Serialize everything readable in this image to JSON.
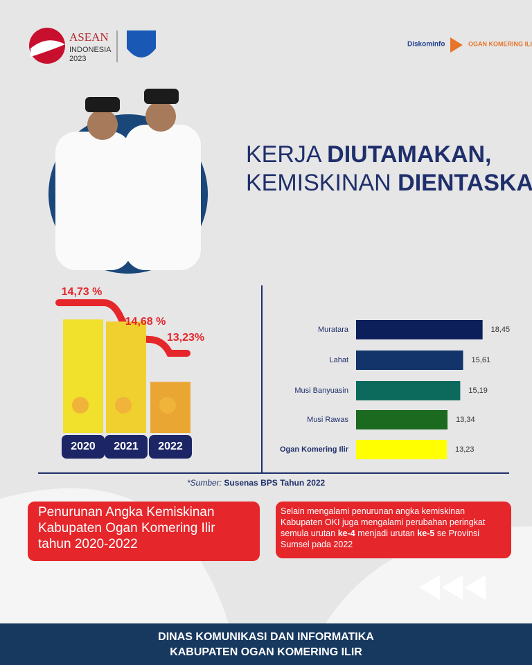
{
  "header": {
    "logo_left": {
      "name": "ASEAN",
      "sub": "INDONESIA",
      "year": "2023"
    },
    "logo_right": {
      "name": "Diskominfo",
      "region": "OGAN KOMERING ILIR"
    }
  },
  "headline": {
    "line1_light": "KERJA",
    "line1_bold": "DIUTAMAKAN,",
    "line2_light": "KEMISKINAN",
    "line2_bold": "DIENTASKAN"
  },
  "chart_data": [
    {
      "type": "bar",
      "categories": [
        "2020",
        "2021",
        "2022"
      ],
      "values": [
        14.73,
        14.68,
        13.23
      ],
      "value_labels": [
        "14,73 %",
        "14,68 %",
        "13,23%"
      ],
      "colors": [
        "#f1e02c",
        "#f0d02f",
        "#eaa632"
      ]
    },
    {
      "type": "hbar",
      "categories": [
        "Muratara",
        "Lahat",
        "Musi Banyuasin",
        "Musi Rawas",
        "Ogan Komering Ilir"
      ],
      "values": [
        18.45,
        15.61,
        15.19,
        13.34,
        13.23
      ],
      "value_labels": [
        "18,45",
        "15,61",
        "15,19",
        "13,34",
        "13,23"
      ],
      "colors": [
        "#0c1f5b",
        "#12346b",
        "#0c6a5d",
        "#1b6a1f",
        "#ffff00"
      ]
    }
  ],
  "source": {
    "label": "*Sumber:",
    "text": "Susenas BPS Tahun 2022"
  },
  "box_left": "Penurunan Angka Kemiskinan Kabupaten Ogan Komering Ilir tahun 2020-2022",
  "box_right": {
    "part1": "Selain mengalami penurunan angka kemiskinan Kabupaten OKI juga mengalami perubahan peringkat semula urutan ",
    "bold1": "ke-4",
    "part2": " menjadi urutan ",
    "bold2": "ke-5",
    "part3": " se Provinsi Sumsel pada 2022"
  },
  "footer": {
    "line1": "DINAS KOMUNIKASI DAN INFORMATIKA",
    "line2": "KABUPATEN OGAN KOMERING ILIR"
  }
}
